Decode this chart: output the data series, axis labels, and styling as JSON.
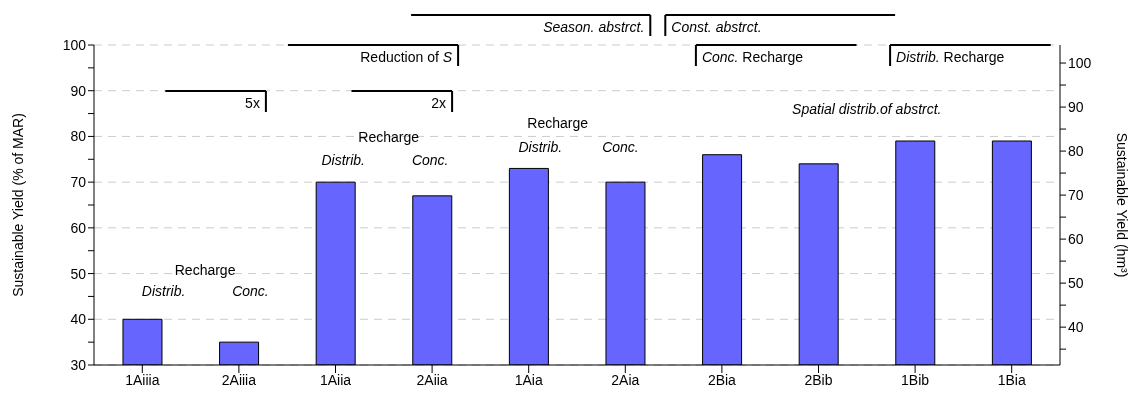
{
  "chart_data": {
    "type": "bar",
    "ylabel": "Sustainable Yield (% of MAR)",
    "y2label": "Sustainable Yield (hm³)",
    "categories": [
      "1Aiiia",
      "2Aiiia",
      "1Aiia",
      "2Aiia",
      "1Aia",
      "2Aia",
      "2Bia",
      "2Bib",
      "1Bib",
      "1Bia"
    ],
    "values": [
      40,
      35,
      70,
      67,
      73,
      70,
      76,
      74,
      79,
      79
    ],
    "color": "#6666ff",
    "ylim": [
      30,
      100
    ],
    "yticks": [
      30,
      {
        "value": 35,
        "label": null
      },
      40,
      {
        "value": 45,
        "label": null
      },
      50,
      {
        "value": 55,
        "label": null
      },
      60,
      {
        "value": 65,
        "label": null
      },
      70,
      {
        "value": 75,
        "label": null
      },
      80,
      {
        "value": 85,
        "label": null
      },
      90,
      {
        "value": 95,
        "label": null
      },
      100
    ],
    "y2lim": [
      31.4,
      104.1
    ],
    "y2ticks": [
      {
        "value": 35,
        "label": null
      },
      40,
      {
        "value": 45,
        "label": null
      },
      50,
      {
        "value": 55,
        "label": null
      },
      60,
      {
        "value": 65,
        "label": null
      },
      70,
      {
        "value": 75,
        "label": null
      },
      80,
      {
        "value": 85,
        "label": null
      },
      90,
      {
        "value": 95,
        "label": null
      },
      100
    ],
    "grid": "y",
    "annotations": [
      "5x",
      "2x",
      "Reduction of S",
      "Season. abstrct.",
      "Const. abstrct.",
      "Conc. Recharge",
      "Distrib. Recharge",
      "Recharge",
      "Distrib.",
      "Conc.",
      "Recharge",
      "Distrib.",
      "Conc.",
      "Recharge",
      "Distrib.",
      "Conc.",
      "Spatial distrib.of abstrct."
    ]
  }
}
